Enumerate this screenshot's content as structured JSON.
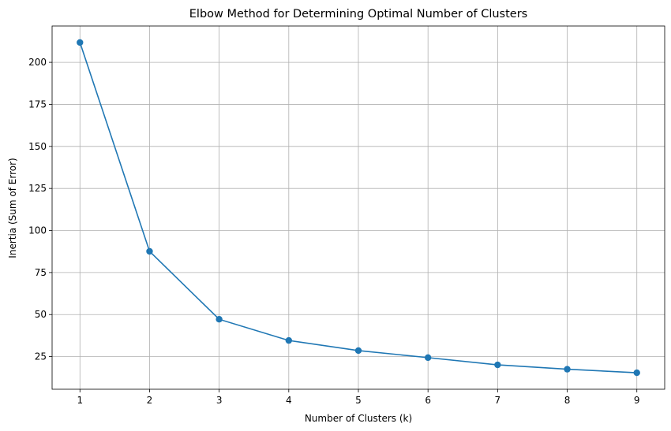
{
  "chart_data": {
    "type": "line",
    "title": "Elbow Method for Determining Optimal Number of Clusters",
    "xlabel": "Number of Clusters (k)",
    "ylabel": "Inertia (Sum of Error)",
    "x": [
      1,
      2,
      3,
      4,
      5,
      6,
      7,
      8,
      9
    ],
    "series": [
      {
        "values": [
          211.8,
          87.6,
          47.2,
          34.6,
          28.6,
          24.4,
          20.1,
          17.5,
          15.4
        ],
        "color": "#1f77b4",
        "marker": "circle"
      }
    ],
    "xticks": [
      1,
      2,
      3,
      4,
      5,
      6,
      7,
      8,
      9
    ],
    "yticks": [
      25,
      50,
      75,
      100,
      125,
      150,
      175,
      200
    ],
    "xlim": [
      0.6,
      9.4
    ],
    "ylim": [
      5.6,
      221.6
    ],
    "grid": true
  }
}
